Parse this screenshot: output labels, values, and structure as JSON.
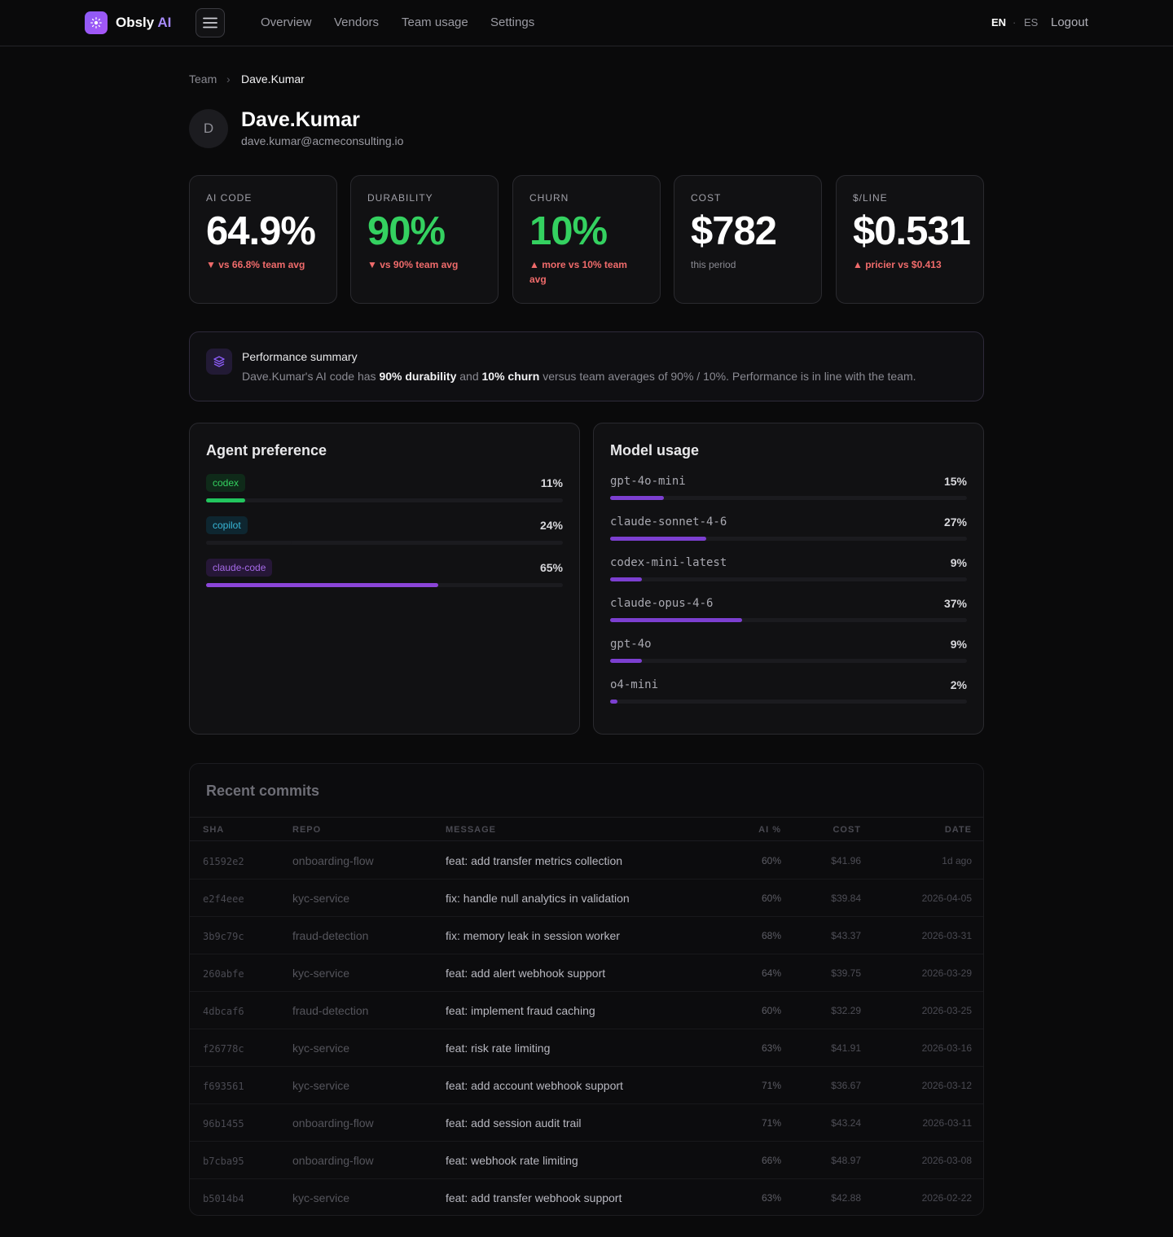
{
  "app": {
    "brand": "Obsly",
    "brand_accent": "AI",
    "nav": [
      "Overview",
      "Vendors",
      "Team usage",
      "Settings"
    ],
    "lang_en": "EN",
    "lang_sep": "·",
    "lang_es": "ES",
    "logout": "Logout"
  },
  "breadcrumb": {
    "parent": "Team",
    "sep": "›",
    "current": "Dave.Kumar"
  },
  "profile": {
    "initial": "D",
    "name": "Dave.Kumar",
    "email": "dave.kumar@acmeconsulting.io"
  },
  "stats": [
    {
      "label": "AI CODE",
      "value": "64.9%",
      "note": "▼ vs 66.8% team avg"
    },
    {
      "label": "DURABILITY",
      "value": "90%",
      "note": "▼ vs 90% team avg"
    },
    {
      "label": "CHURN",
      "value": "10%",
      "note": "▲ more vs 10% team avg"
    },
    {
      "label": "COST",
      "value": "$782",
      "note": "this period"
    },
    {
      "label": "$/LINE",
      "value": "$0.531",
      "note": "▲ pricier vs $0.413"
    }
  ],
  "summary": {
    "title": "Performance summary",
    "t1": "Dave.Kumar's AI code has ",
    "b1": "90% durability",
    "t2": " and ",
    "b2": "10% churn",
    "t3": " versus team averages of 90% / 10%. Performance is in line with the team."
  },
  "agents": {
    "title": "Agent preference",
    "items": [
      {
        "name": "codex",
        "pct": "11%",
        "value": 11,
        "color": "#22c55e"
      },
      {
        "name": "copilot",
        "pct": "24%",
        "value": 24,
        "color": "#1b1b1f"
      },
      {
        "name": "claude-code",
        "pct": "65%",
        "value": 65,
        "color": "#8b45d8"
      }
    ]
  },
  "models": {
    "title": "Model usage",
    "color": "#7c3fd0",
    "items": [
      {
        "name": "gpt-4o-mini",
        "pct": "15%",
        "value": 15
      },
      {
        "name": "claude-sonnet-4-6",
        "pct": "27%",
        "value": 27
      },
      {
        "name": "codex-mini-latest",
        "pct": "9%",
        "value": 9
      },
      {
        "name": "claude-opus-4-6",
        "pct": "37%",
        "value": 37
      },
      {
        "name": "gpt-4o",
        "pct": "9%",
        "value": 9
      },
      {
        "name": "o4-mini",
        "pct": "2%",
        "value": 2
      }
    ]
  },
  "commits": {
    "title": "Recent commits",
    "headers": [
      "SHA",
      "REPO",
      "MESSAGE",
      "AI %",
      "COST",
      "DATE"
    ],
    "rows": [
      [
        "61592e2",
        "onboarding-flow",
        "feat: add transfer metrics collection",
        "60%",
        "$41.96",
        "1d ago"
      ],
      [
        "e2f4eee",
        "kyc-service",
        "fix: handle null analytics in validation",
        "60%",
        "$39.84",
        "2026-04-05"
      ],
      [
        "3b9c79c",
        "fraud-detection",
        "fix: memory leak in session worker",
        "68%",
        "$43.37",
        "2026-03-31"
      ],
      [
        "260abfe",
        "kyc-service",
        "feat: add alert webhook support",
        "64%",
        "$39.75",
        "2026-03-29"
      ],
      [
        "4dbcaf6",
        "fraud-detection",
        "feat: implement fraud caching",
        "60%",
        "$32.29",
        "2026-03-25"
      ],
      [
        "f26778c",
        "kyc-service",
        "feat: risk rate limiting",
        "63%",
        "$41.91",
        "2026-03-16"
      ],
      [
        "f693561",
        "kyc-service",
        "feat: add account webhook support",
        "71%",
        "$36.67",
        "2026-03-12"
      ],
      [
        "96b1455",
        "onboarding-flow",
        "feat: add session audit trail",
        "71%",
        "$43.24",
        "2026-03-11"
      ],
      [
        "b7cba95",
        "onboarding-flow",
        "feat: webhook rate limiting",
        "66%",
        "$48.97",
        "2026-03-08"
      ],
      [
        "b5014b4",
        "kyc-service",
        "feat: add transfer webhook support",
        "63%",
        "$42.88",
        "2026-02-22"
      ]
    ]
  }
}
